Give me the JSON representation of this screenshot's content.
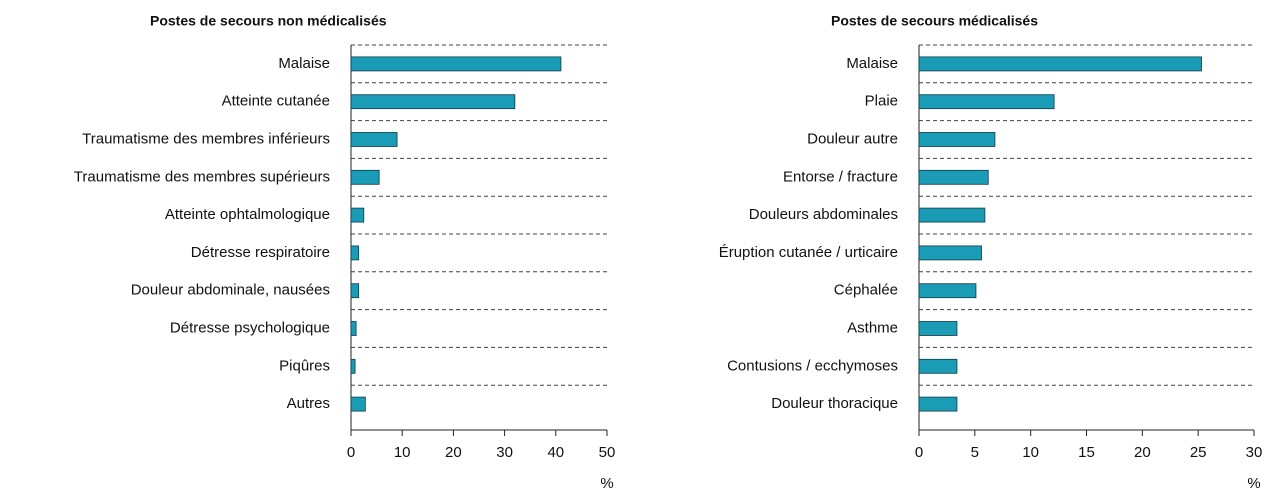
{
  "chart_data": [
    {
      "type": "bar",
      "title": "Postes de secours non médicalisés",
      "categories": [
        "Malaise",
        "Atteinte cutanée",
        "Traumatisme des membres inférieurs",
        "Traumatisme des membres supérieurs",
        "Atteinte ophtalmologique",
        "Détresse respiratoire",
        "Douleur abdominale, nausées",
        "Détresse psychologique",
        "Piqûres",
        "Autres"
      ],
      "values": [
        41,
        32,
        9,
        5.5,
        2.5,
        1.5,
        1.5,
        1,
        0.8,
        2.8
      ],
      "color": "#1a9cb6",
      "xlim": [
        0,
        50
      ],
      "xticks": [
        0,
        10,
        20,
        30,
        40,
        50
      ],
      "xlabel": "%"
    },
    {
      "type": "bar",
      "title": "Postes de secours médicalisés",
      "categories": [
        "Malaise",
        "Plaie",
        "Douleur autre",
        "Entorse / fracture",
        "Douleurs abdominales",
        "Éruption cutanée / urticaire",
        "Céphalée",
        "Asthme",
        "Contusions / ecchymoses",
        "Douleur thoracique"
      ],
      "values": [
        25.3,
        12.1,
        6.8,
        6.2,
        5.9,
        5.6,
        5.1,
        3.4,
        3.4,
        3.4
      ],
      "color": "#1a9cb6",
      "xlim": [
        0,
        30
      ],
      "xticks": [
        0,
        5,
        10,
        15,
        20,
        25,
        30
      ],
      "xlabel": "%"
    }
  ]
}
